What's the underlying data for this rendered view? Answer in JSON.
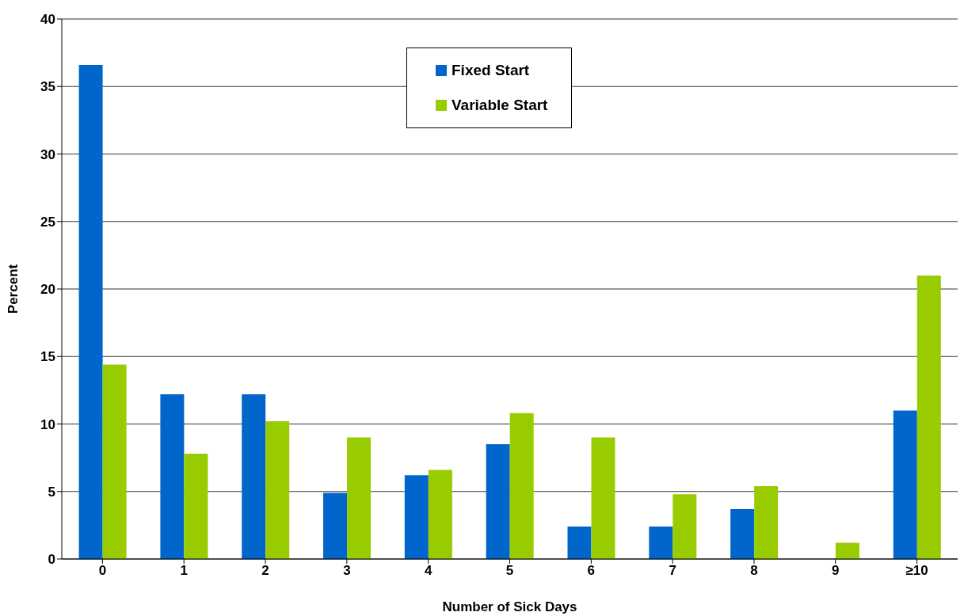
{
  "chart_data": {
    "type": "bar",
    "xlabel": "Number of Sick Days",
    "ylabel": "Percent",
    "categories": [
      "0",
      "1",
      "2",
      "3",
      "4",
      "5",
      "6",
      "7",
      "8",
      "9",
      "≥10"
    ],
    "series": [
      {
        "name": "Fixed Start",
        "color": "#0066cc",
        "values": [
          36.6,
          12.2,
          12.2,
          4.9,
          6.2,
          8.5,
          2.4,
          2.4,
          3.7,
          0,
          11.0
        ]
      },
      {
        "name": "Variable Start",
        "color": "#99cc00",
        "values": [
          14.4,
          7.8,
          10.2,
          9.0,
          6.6,
          10.8,
          9.0,
          4.8,
          5.4,
          1.2,
          21.0
        ]
      }
    ],
    "ylim": [
      0,
      40
    ],
    "yticks": [
      0,
      5,
      10,
      15,
      20,
      25,
      30,
      35,
      40
    ],
    "grid": "y",
    "legend": "top"
  }
}
